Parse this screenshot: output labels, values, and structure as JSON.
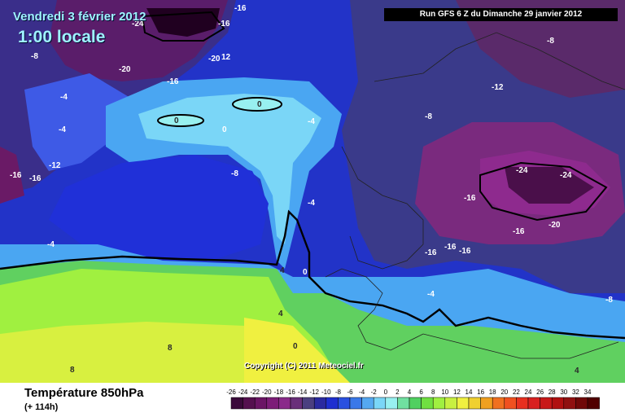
{
  "header": {
    "date": "Vendredi 3 février 2012",
    "time": "1:00 locale",
    "run": "Run GFS 6 Z du Dimanche 29 janvier 2012"
  },
  "copyright": "Copyright (C) 2011 Meteociel.fr",
  "footer": {
    "title": "Température 850hPa",
    "subtitle": "(+ 114h)"
  },
  "scale": {
    "labels": [
      "-26",
      "-24",
      "-22",
      "-20",
      "-18",
      "-16",
      "-14",
      "-12",
      "-10",
      "-8",
      "-6",
      "-4",
      "-2",
      "0",
      "2",
      "4",
      "6",
      "8",
      "10",
      "12",
      "14",
      "16",
      "18",
      "20",
      "22",
      "24",
      "26",
      "28",
      "30",
      "32",
      "34"
    ],
    "colors": [
      "#3a0a3a",
      "#55104f",
      "#6b1565",
      "#7d1d78",
      "#8a2a8a",
      "#6a2f7a",
      "#4b3f80",
      "#2a2aa0",
      "#1e2fd0",
      "#2a50e0",
      "#3a78e8",
      "#55a8f0",
      "#7ad6f7",
      "#98f0f0",
      "#70e0a0",
      "#50d060",
      "#70e040",
      "#a0f040",
      "#c8f040",
      "#f0f040",
      "#f0d030",
      "#f0a020",
      "#f07020",
      "#f05020",
      "#e83020",
      "#d82020",
      "#c81818",
      "#b01010",
      "#901010",
      "#700808",
      "#500000"
    ]
  },
  "contour_labels": [
    {
      "text": "-16"
    },
    {
      "text": "-24"
    },
    {
      "text": "-16"
    },
    {
      "text": "-8"
    },
    {
      "text": "-20"
    },
    {
      "text": "-20"
    },
    {
      "text": "12"
    },
    {
      "text": "-16"
    },
    {
      "text": "-8"
    },
    {
      "text": "-12"
    },
    {
      "text": "-8"
    },
    {
      "text": "-4"
    },
    {
      "text": "-4"
    },
    {
      "text": "-16"
    },
    {
      "text": "-16"
    },
    {
      "text": "-12"
    },
    {
      "text": "0"
    },
    {
      "text": "0"
    },
    {
      "text": "0"
    },
    {
      "text": "-4"
    },
    {
      "text": "-8"
    },
    {
      "text": "-4"
    },
    {
      "text": "-24"
    },
    {
      "text": "-24"
    },
    {
      "text": "-16"
    },
    {
      "text": "-20"
    },
    {
      "text": "-16"
    },
    {
      "text": "-16"
    },
    {
      "text": "-16"
    },
    {
      "text": "-16"
    },
    {
      "text": "-4"
    },
    {
      "text": "4"
    },
    {
      "text": "0"
    },
    {
      "text": "4"
    },
    {
      "text": "-4"
    },
    {
      "text": "-8"
    },
    {
      "text": "8"
    },
    {
      "text": "8"
    },
    {
      "text": "0"
    },
    {
      "text": "4"
    }
  ]
}
